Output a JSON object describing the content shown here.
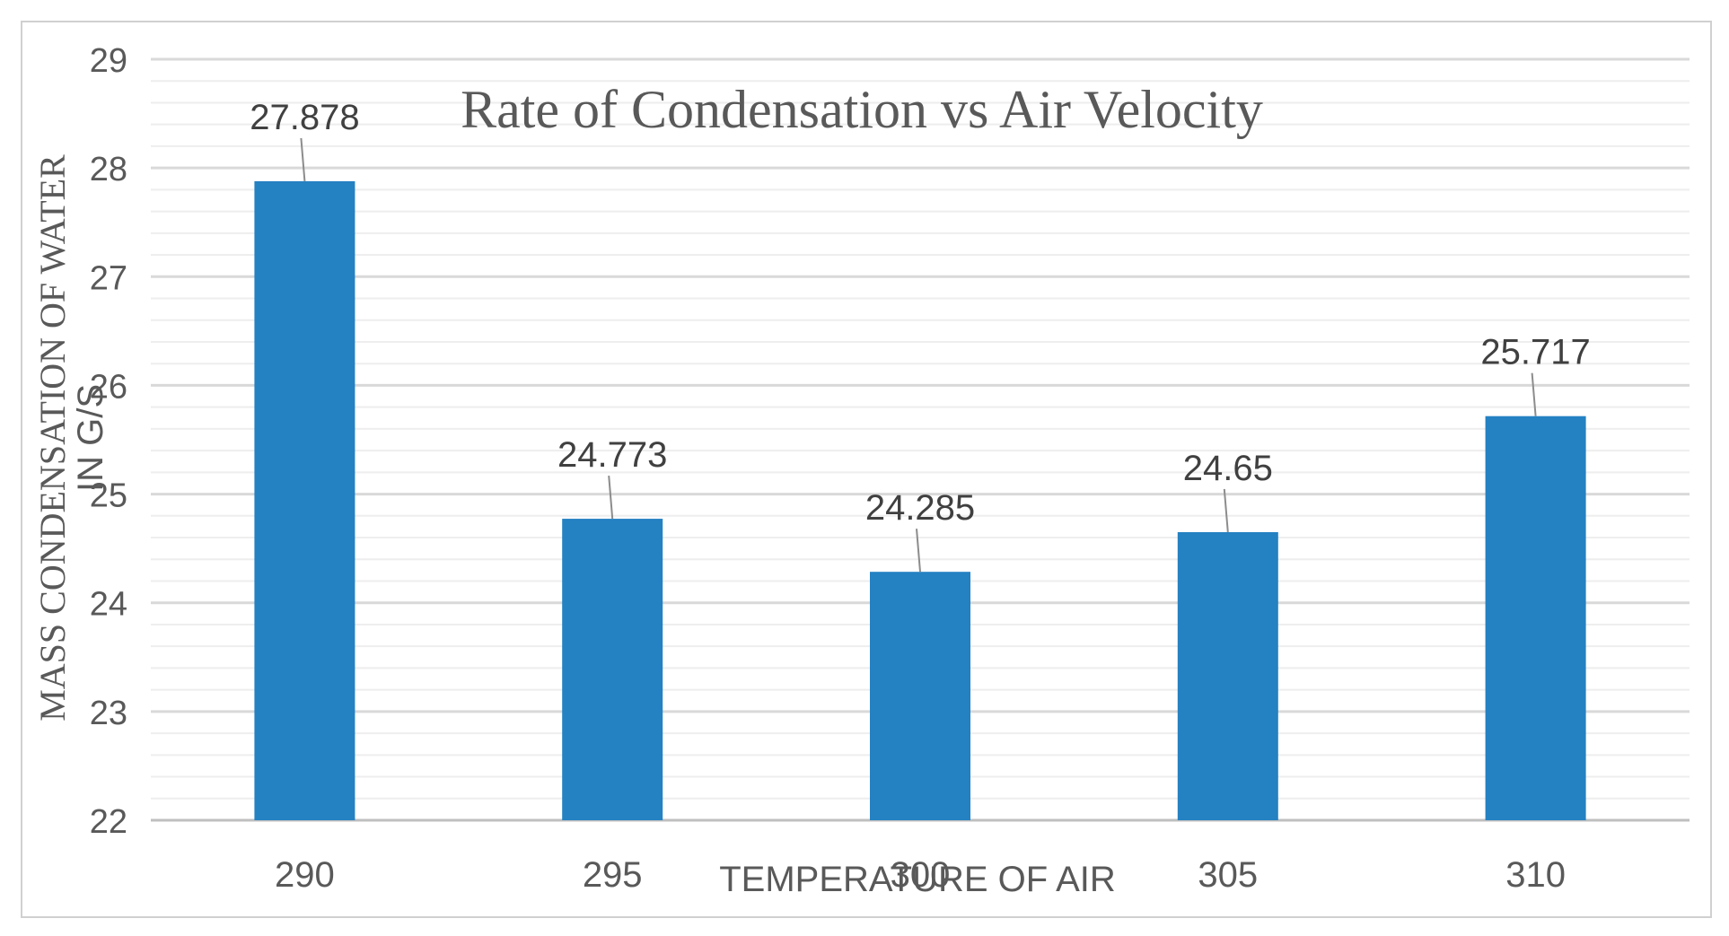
{
  "colors": {
    "bar": "#2481c2",
    "major_grid": "#d9d9d9",
    "minor_grid": "#eeeeee",
    "text": "#595959",
    "frame": "#d0d0d0",
    "leader": "#8c8c8c"
  },
  "chart_data": {
    "type": "bar",
    "title": "Rate of Condensation vs Air Velocity",
    "xlabel": "TEMPERATURE OF AIR",
    "ylabel_line1": "MASS CONDENSATION OF WATER",
    "ylabel_line2": "IN G/S",
    "categories": [
      "290",
      "295",
      "300",
      "305",
      "310"
    ],
    "values": [
      27.878,
      24.773,
      24.285,
      24.65,
      25.717
    ],
    "value_labels": [
      "27.878",
      "24.773",
      "24.285",
      "24.65",
      "25.717"
    ],
    "ylim": [
      22,
      29
    ],
    "yticks": [
      "22",
      "23",
      "24",
      "25",
      "26",
      "27",
      "28",
      "29"
    ],
    "minor_step": 0.2,
    "grid": true,
    "legend": "none"
  }
}
